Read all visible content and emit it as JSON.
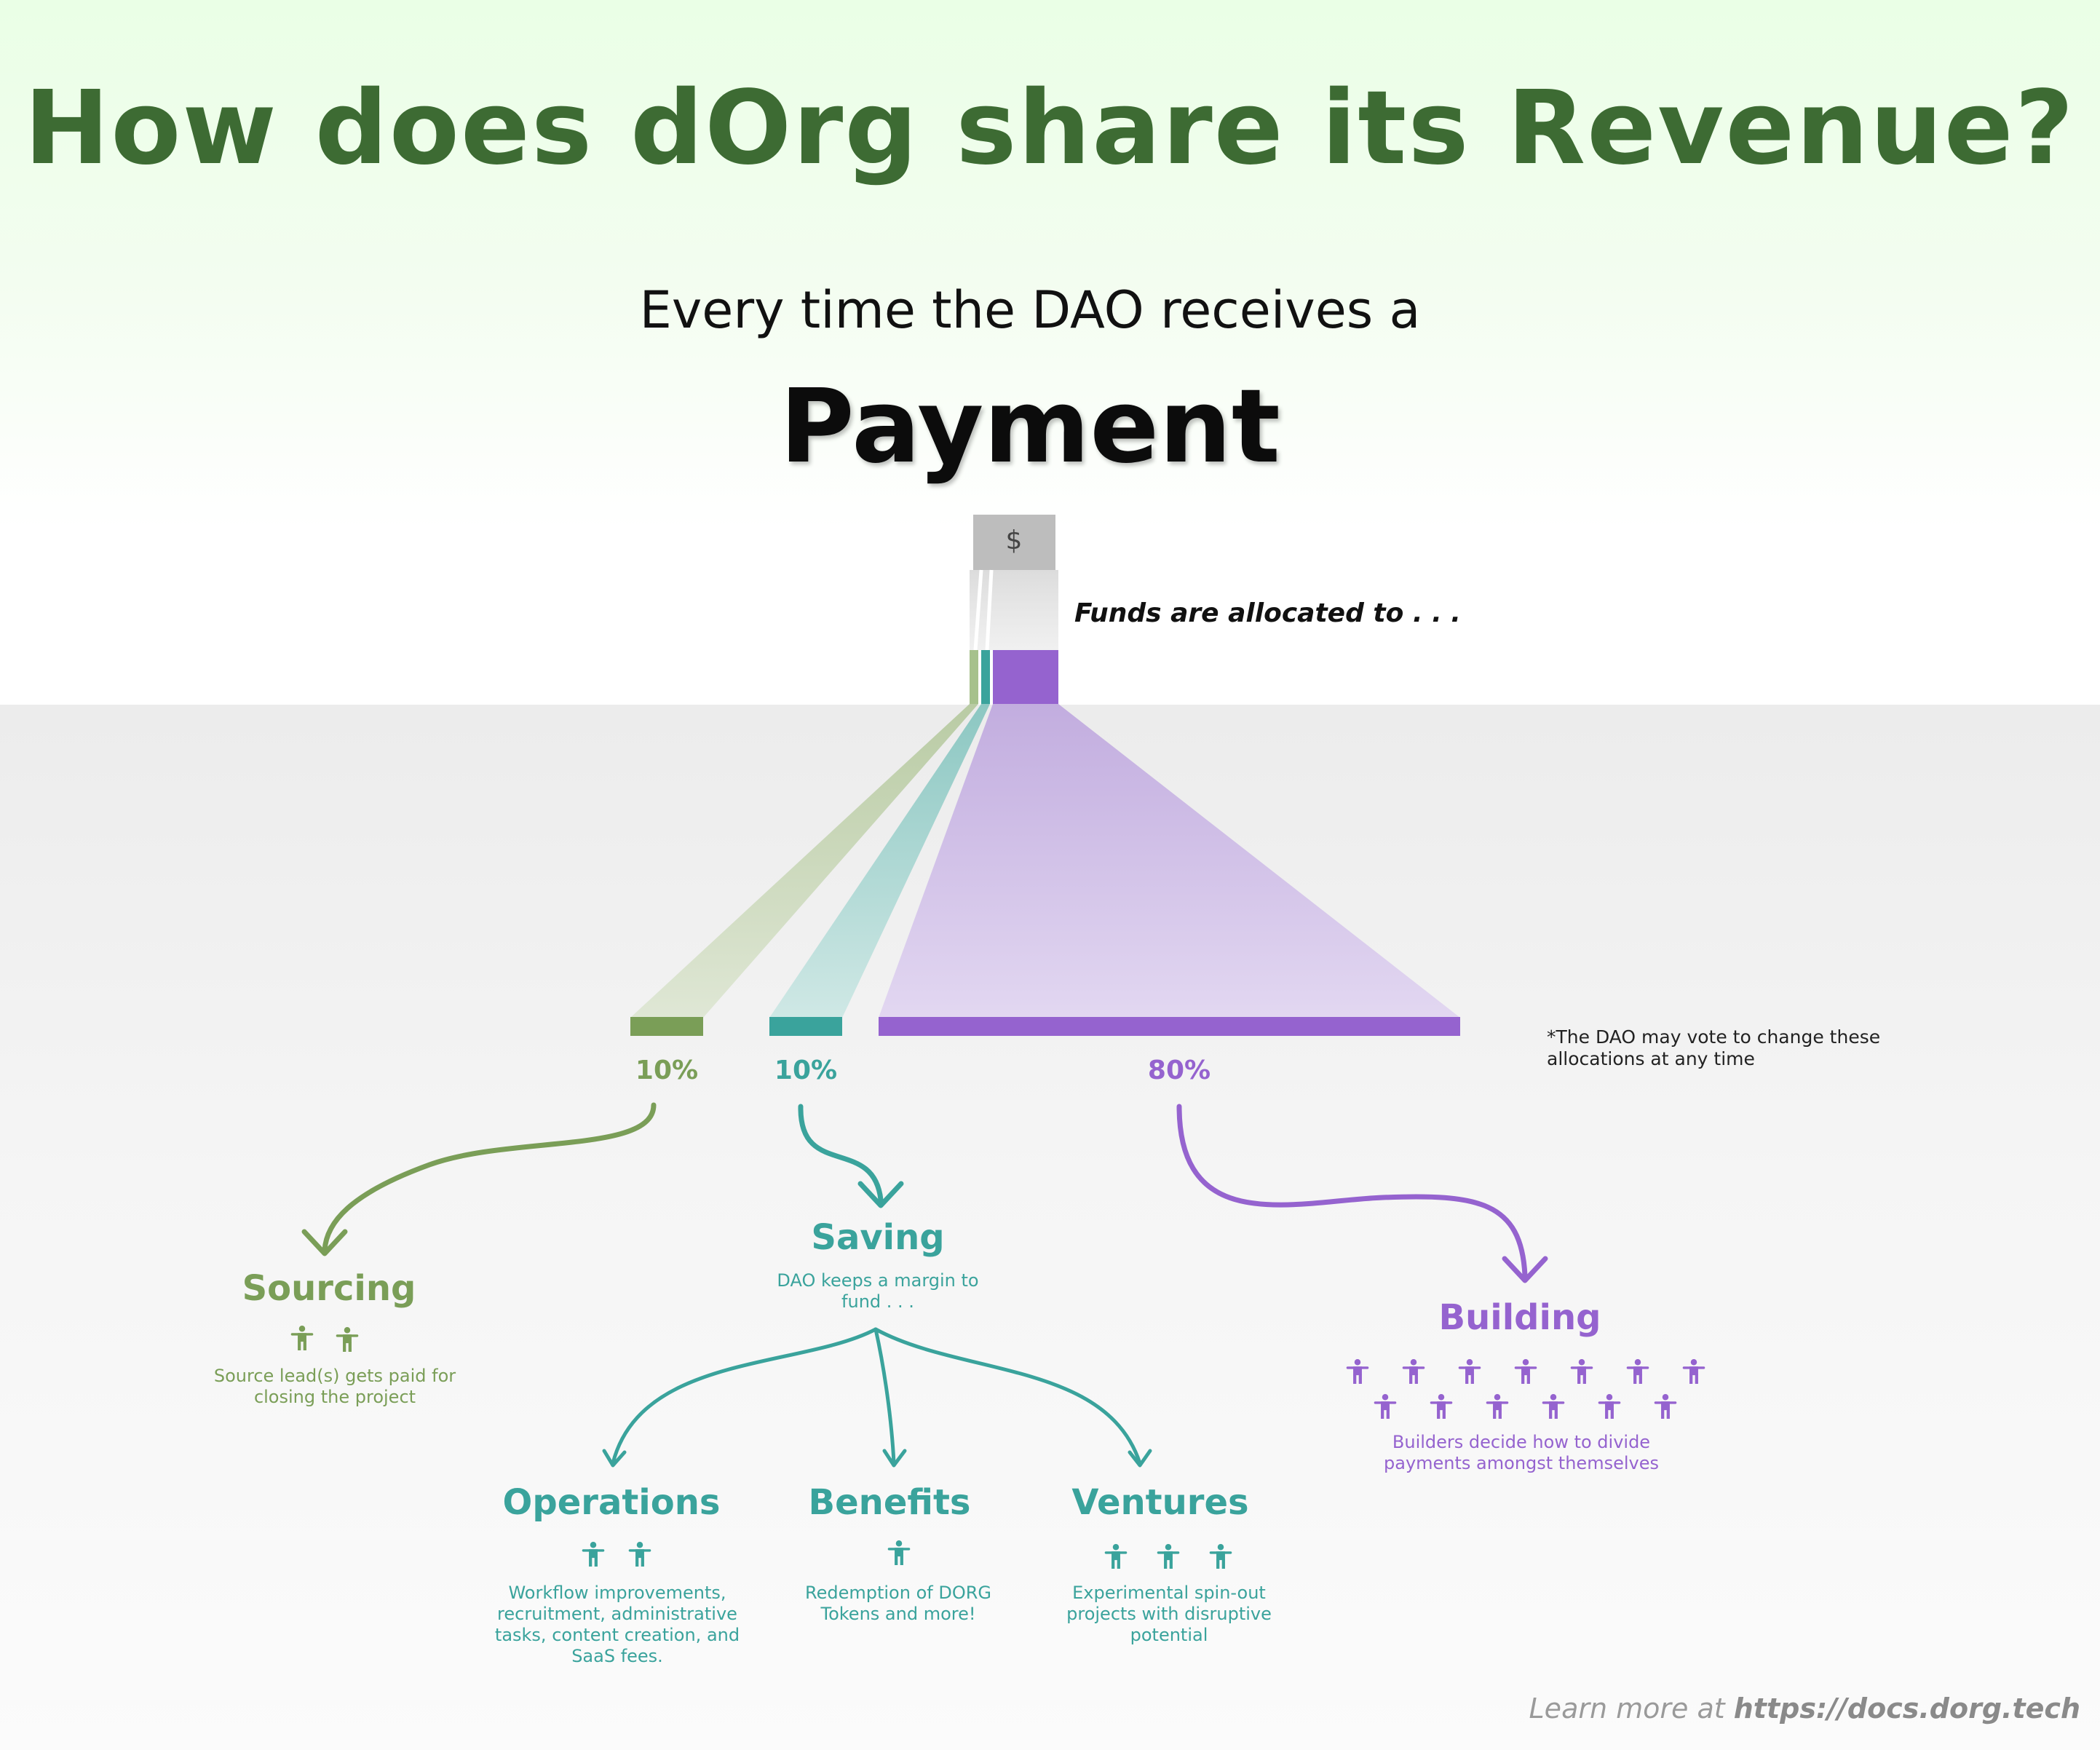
{
  "header": {
    "title": "How does dOrg share its Revenue?",
    "subtitle": "Every time the DAO receives a",
    "emphasis": "Payment"
  },
  "funnel": {
    "source_symbol": "$",
    "funds_label": "Funds are allocated to . . .",
    "footnote": "*The DAO may vote to change these allocations at any time"
  },
  "allocations": [
    {
      "percent": "10%",
      "value": 10,
      "color": "#7a9e57"
    },
    {
      "percent": "10%",
      "value": 10,
      "color": "#3aa39c"
    },
    {
      "percent": "80%",
      "value": 80,
      "color": "#9563cf"
    }
  ],
  "sourcing": {
    "title": "Sourcing",
    "description": "Source lead(s) gets paid for closing the project",
    "people_count": 2
  },
  "saving": {
    "title": "Saving",
    "description": "DAO keeps a margin to fund . . ."
  },
  "building": {
    "title": "Building",
    "description": "Builders decide how to divide payments amongst themselves",
    "people_count": 13
  },
  "operations": {
    "title": "Operations",
    "description": "Workflow improvements, recruitment, administrative tasks, content creation, and SaaS fees.",
    "people_count": 2
  },
  "benefits": {
    "title": "Benefits",
    "description": "Redemption of DORG Tokens and more!",
    "people_count": 1
  },
  "ventures": {
    "title": "Ventures",
    "description": "Experimental spin-out projects with disruptive potential",
    "people_count": 3
  },
  "footer": {
    "prefix": "Learn more at ",
    "link": "https://docs.dorg.tech"
  },
  "colors": {
    "title_green": "#3d6b33",
    "sourcing_green": "#7a9e57",
    "saving_teal": "#3aa39c",
    "building_purple": "#9563cf",
    "source_gray": "#bdbdbd"
  }
}
